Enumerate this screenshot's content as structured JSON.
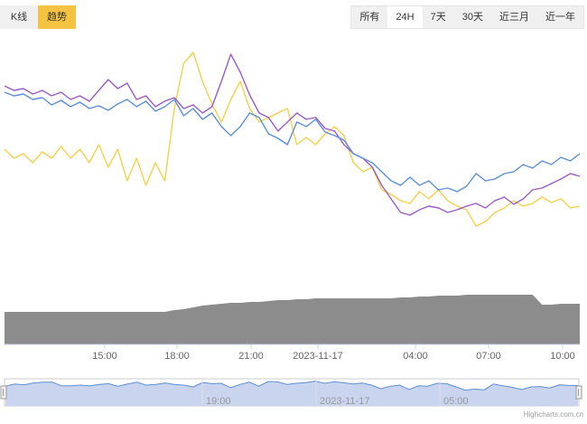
{
  "tabs": [
    {
      "label": "K线",
      "active": false
    },
    {
      "label": "趋势",
      "active": true
    }
  ],
  "range_buttons": [
    {
      "label": "所有",
      "active": false
    },
    {
      "label": "24H",
      "active": true
    },
    {
      "label": "7天",
      "active": false
    },
    {
      "label": "30天",
      "active": false
    },
    {
      "label": "近三月",
      "active": false
    },
    {
      "label": "近一年",
      "active": false
    }
  ],
  "credit": "Highcharts.com.cn",
  "colors": {
    "blue": "#5b8fd8",
    "purple": "#9b5cc6",
    "yellow": "#f5d04a",
    "volume": "#8c8c8c",
    "navigator_fill": "#c9d4ee",
    "navigator_line": "#5b8fd8",
    "accent": "#f5c242"
  },
  "chart_data": {
    "type": "line",
    "x_tick_labels": [
      "15:00",
      "18:00",
      "21:00",
      "2023-11-17",
      "04:00",
      "07:00",
      "10:00"
    ],
    "navigator_tick_labels": [
      "19:00",
      "2023-11-17",
      "05:00"
    ],
    "series": [
      {
        "color": "#5b8fd8",
        "values": [
          142,
          146,
          144,
          150,
          148,
          156,
          151,
          158,
          153,
          160,
          157,
          162,
          155,
          150,
          158,
          152,
          163,
          158,
          150,
          168,
          160,
          172,
          165,
          180,
          190,
          180,
          165,
          170,
          188,
          193,
          200,
          175,
          180,
          172,
          186,
          190,
          195,
          210,
          215,
          220,
          230,
          240,
          245,
          236,
          245,
          240,
          250,
          248,
          252,
          246,
          232,
          240,
          238,
          232,
          230,
          222,
          226,
          218,
          222,
          214,
          218,
          210
        ]
      },
      {
        "color": "#9b5cc6",
        "values": [
          135,
          140,
          138,
          144,
          140,
          146,
          142,
          150,
          146,
          152,
          140,
          128,
          138,
          132,
          150,
          146,
          158,
          152,
          148,
          160,
          156,
          165,
          158,
          130,
          100,
          120,
          145,
          165,
          170,
          185,
          175,
          165,
          172,
          170,
          182,
          185,
          200,
          210,
          215,
          225,
          245,
          260,
          275,
          278,
          272,
          268,
          270,
          275,
          272,
          268,
          265,
          270,
          262,
          258,
          266,
          260,
          250,
          248,
          243,
          238,
          232,
          235
        ]
      },
      {
        "color": "#f5d04a",
        "values": [
          205,
          215,
          210,
          220,
          208,
          215,
          202,
          215,
          205,
          220,
          200,
          225,
          205,
          240,
          215,
          245,
          220,
          240,
          160,
          110,
          98,
          130,
          155,
          175,
          150,
          130,
          160,
          175,
          170,
          165,
          160,
          200,
          192,
          200,
          188,
          180,
          190,
          220,
          230,
          225,
          250,
          255,
          262,
          265,
          252,
          260,
          250,
          262,
          268,
          272,
          290,
          285,
          275,
          270,
          262,
          268,
          265,
          258,
          264,
          260,
          270,
          268
        ]
      }
    ],
    "volume": [
      345,
      345,
      345,
      345,
      345,
      345,
      345,
      345,
      345,
      345,
      345,
      345,
      345,
      345,
      345,
      345,
      345,
      345,
      343,
      342,
      340,
      338,
      337,
      336,
      335,
      335,
      334,
      334,
      333,
      332,
      332,
      331,
      331,
      330,
      330,
      330,
      330,
      330,
      330,
      330,
      330,
      330,
      329,
      329,
      328,
      328,
      327,
      327,
      327,
      326,
      326,
      326,
      326,
      326,
      326,
      326,
      326,
      337,
      337,
      336,
      336,
      336
    ],
    "navigator": [
      118,
      112,
      114,
      109,
      107,
      107,
      117,
      117,
      115,
      117,
      113,
      111,
      118,
      112,
      107,
      115,
      113,
      109,
      113,
      115,
      120,
      108,
      111,
      110,
      122,
      113,
      107,
      118,
      105,
      106,
      113,
      110,
      108,
      104,
      110,
      106,
      108,
      112,
      109,
      115,
      125,
      118,
      115,
      127,
      117,
      118,
      110,
      111,
      120,
      129,
      126,
      128,
      112,
      117,
      121,
      127,
      120,
      119,
      123,
      114,
      116,
      116
    ]
  }
}
